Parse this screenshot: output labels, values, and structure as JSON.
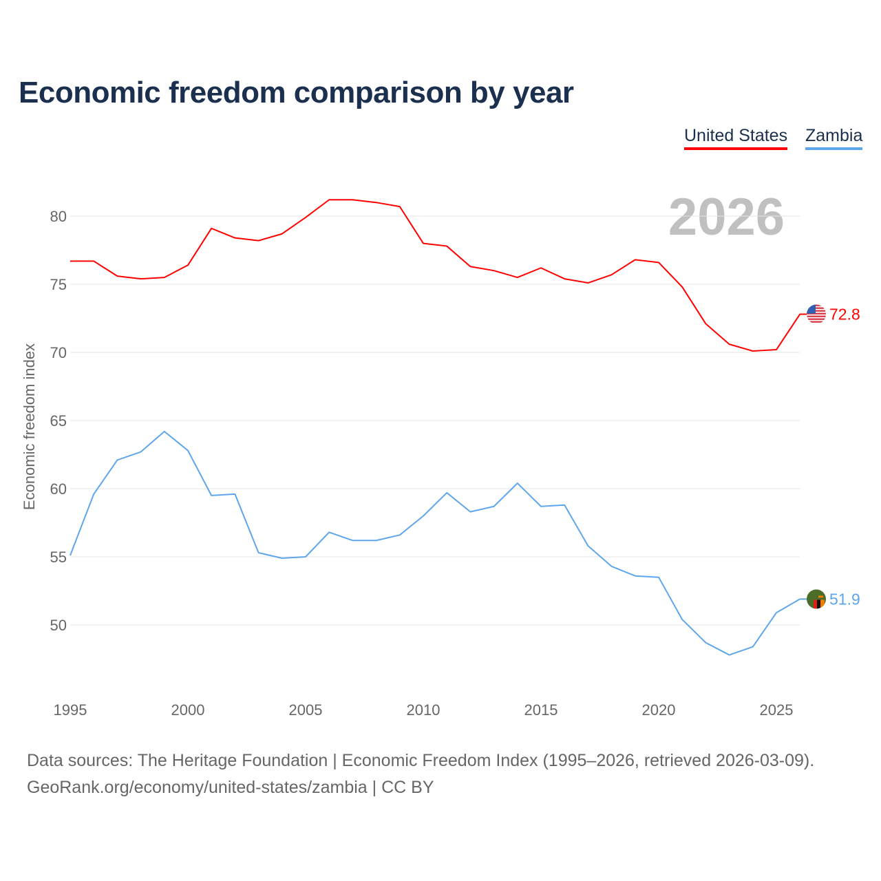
{
  "title": "Economic freedom comparison by year",
  "legend": [
    "United States",
    "Zambia"
  ],
  "source_line1": "Data sources: The Heritage Foundation | Economic Freedom Index (1995–2026, retrieved 2026-03-09).",
  "source_line2": "GeoRank.org/economy/united-states/zambia | CC BY",
  "chart_data": {
    "type": "line",
    "title": "Economic freedom comparison by year",
    "xlabel": "",
    "ylabel": "Economic freedom index",
    "current_year_label": "2026",
    "x": [
      1995,
      1996,
      1997,
      1998,
      1999,
      2000,
      2001,
      2002,
      2003,
      2004,
      2005,
      2006,
      2007,
      2008,
      2009,
      2010,
      2011,
      2012,
      2013,
      2014,
      2015,
      2016,
      2017,
      2018,
      2019,
      2020,
      2021,
      2022,
      2023,
      2024,
      2025,
      2026
    ],
    "xticks": [
      1995,
      2000,
      2005,
      2010,
      2015,
      2020,
      2025
    ],
    "yticks": [
      50,
      55,
      60,
      65,
      70,
      75,
      80
    ],
    "ylim": [
      46,
      83
    ],
    "grid": true,
    "legend_position": "top-right",
    "series": [
      {
        "name": "United States",
        "color": "#ff0000",
        "end_label": "72.8",
        "flag": "us-flag",
        "values": [
          76.7,
          76.7,
          75.6,
          75.4,
          75.5,
          76.4,
          79.1,
          78.4,
          78.2,
          78.7,
          79.9,
          81.2,
          81.2,
          81.0,
          80.7,
          78.0,
          77.8,
          76.3,
          76.0,
          75.5,
          76.2,
          75.4,
          75.1,
          75.7,
          76.8,
          76.6,
          74.8,
          72.1,
          70.6,
          70.1,
          70.2,
          72.8
        ]
      },
      {
        "name": "Zambia",
        "color": "#5ea6ec",
        "end_label": "51.9",
        "flag": "zambia-flag",
        "values": [
          55.1,
          59.6,
          62.1,
          62.7,
          64.2,
          62.8,
          59.5,
          59.6,
          55.3,
          54.9,
          55.0,
          56.8,
          56.2,
          56.2,
          56.6,
          58.0,
          59.7,
          58.3,
          58.7,
          60.4,
          58.7,
          58.8,
          55.8,
          54.3,
          53.6,
          53.5,
          50.4,
          48.7,
          47.8,
          48.4,
          50.9,
          51.9
        ]
      }
    ]
  }
}
